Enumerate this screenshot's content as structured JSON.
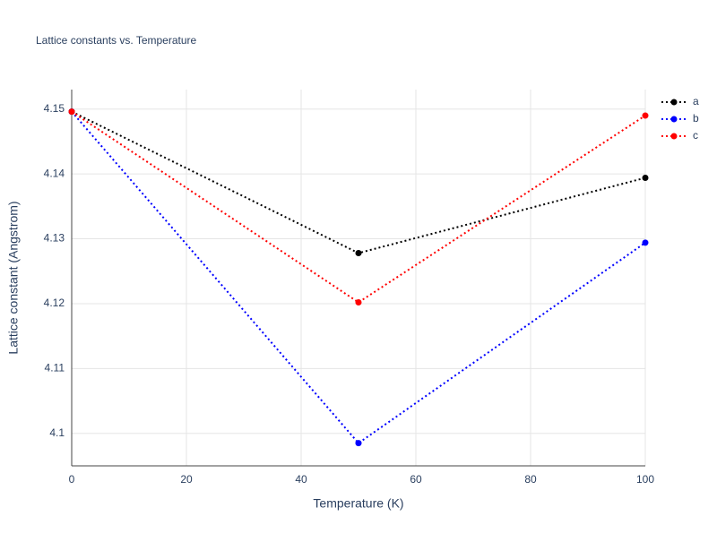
{
  "chart_data": {
    "type": "line",
    "title": "Lattice constants vs. Temperature",
    "x_label": "Temperature (K)",
    "y_label": "Lattice constant (Angstrom)",
    "x": [
      0,
      50,
      100
    ],
    "series": [
      {
        "name": "a",
        "color": "#000000",
        "values": [
          4.1496,
          4.1278,
          4.1394
        ]
      },
      {
        "name": "b",
        "color": "#0000ff",
        "values": [
          4.1496,
          4.0985,
          4.1294
        ]
      },
      {
        "name": "c",
        "color": "#ff0000",
        "values": [
          4.1496,
          4.1202,
          4.149
        ]
      }
    ],
    "xlim": [
      0,
      100
    ],
    "xticks": [
      0,
      20,
      40,
      60,
      80,
      100
    ],
    "ylim": [
      4.095,
      4.153
    ],
    "yticks": [
      4.1,
      4.11,
      4.12,
      4.13,
      4.14,
      4.15
    ],
    "grid": true,
    "legend": "top-right"
  }
}
